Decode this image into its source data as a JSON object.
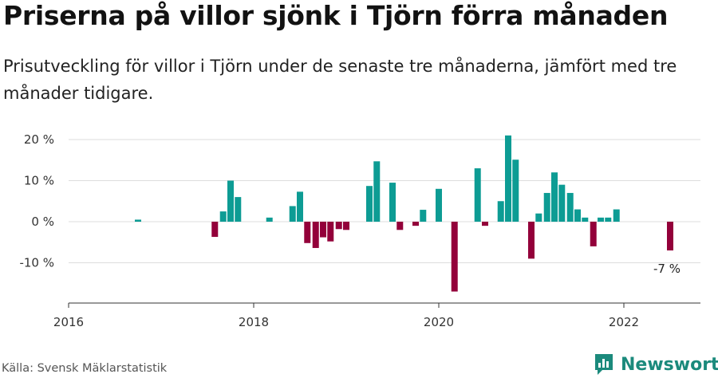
{
  "title": "Priserna på villor sjönk i Tjörn förra månaden",
  "subtitle": "Prisutveckling för villor i Tjörn under de senaste tre månaderna, jämfört med tre månader tidigare.",
  "source": "Källa: Svensk Mäklarstatistik",
  "brand": "Newsworthy",
  "colors": {
    "positive": "#0d9c94",
    "negative": "#93003a",
    "grid": "#dddddd",
    "axis": "#333333",
    "brand": "#1b8a7c"
  },
  "chart_data": {
    "type": "bar",
    "x_unit": "year",
    "xlim": [
      2016,
      2022.83
    ],
    "ylim": [
      -19,
      24
    ],
    "yticks": [
      20,
      10,
      0,
      -10
    ],
    "ytick_labels": [
      "20 %",
      "10 %",
      "0 %",
      "-10 %"
    ],
    "xticks": [
      2016,
      2018,
      2020,
      2022
    ],
    "xtick_labels": [
      "2016",
      "2018",
      "2020",
      "2022"
    ],
    "annotation": {
      "text": "-7 %",
      "x": 2022.5,
      "y": -7
    },
    "series": [
      {
        "x": 2016.75,
        "y": 0.5
      },
      {
        "x": 2017.58,
        "y": -3.7
      },
      {
        "x": 2017.67,
        "y": 2.5
      },
      {
        "x": 2017.75,
        "y": 10.0
      },
      {
        "x": 2017.83,
        "y": 6.0
      },
      {
        "x": 2018.17,
        "y": 1.0
      },
      {
        "x": 2018.42,
        "y": 3.8
      },
      {
        "x": 2018.5,
        "y": 7.3
      },
      {
        "x": 2018.58,
        "y": -5.2
      },
      {
        "x": 2018.67,
        "y": -6.4
      },
      {
        "x": 2018.75,
        "y": -3.8
      },
      {
        "x": 2018.83,
        "y": -4.8
      },
      {
        "x": 2018.92,
        "y": -1.8
      },
      {
        "x": 2019.0,
        "y": -2.0
      },
      {
        "x": 2019.25,
        "y": 8.7
      },
      {
        "x": 2019.33,
        "y": 14.7
      },
      {
        "x": 2019.5,
        "y": 9.5
      },
      {
        "x": 2019.58,
        "y": -2.0
      },
      {
        "x": 2019.75,
        "y": -1.0
      },
      {
        "x": 2019.83,
        "y": 2.9
      },
      {
        "x": 2020.0,
        "y": 8.0
      },
      {
        "x": 2020.17,
        "y": -17.0
      },
      {
        "x": 2020.42,
        "y": 13.0
      },
      {
        "x": 2020.5,
        "y": -1.0
      },
      {
        "x": 2020.67,
        "y": 5.0
      },
      {
        "x": 2020.75,
        "y": 21.0
      },
      {
        "x": 2020.83,
        "y": 15.1
      },
      {
        "x": 2021.0,
        "y": -9.0
      },
      {
        "x": 2021.08,
        "y": 2.0
      },
      {
        "x": 2021.17,
        "y": 7.0
      },
      {
        "x": 2021.25,
        "y": 12.0
      },
      {
        "x": 2021.33,
        "y": 9.0
      },
      {
        "x": 2021.42,
        "y": 7.0
      },
      {
        "x": 2021.5,
        "y": 3.0
      },
      {
        "x": 2021.58,
        "y": 1.0
      },
      {
        "x": 2021.67,
        "y": -6.0
      },
      {
        "x": 2021.75,
        "y": 1.0
      },
      {
        "x": 2021.83,
        "y": 1.0
      },
      {
        "x": 2021.92,
        "y": 3.0
      },
      {
        "x": 2022.5,
        "y": -7.0
      }
    ]
  }
}
